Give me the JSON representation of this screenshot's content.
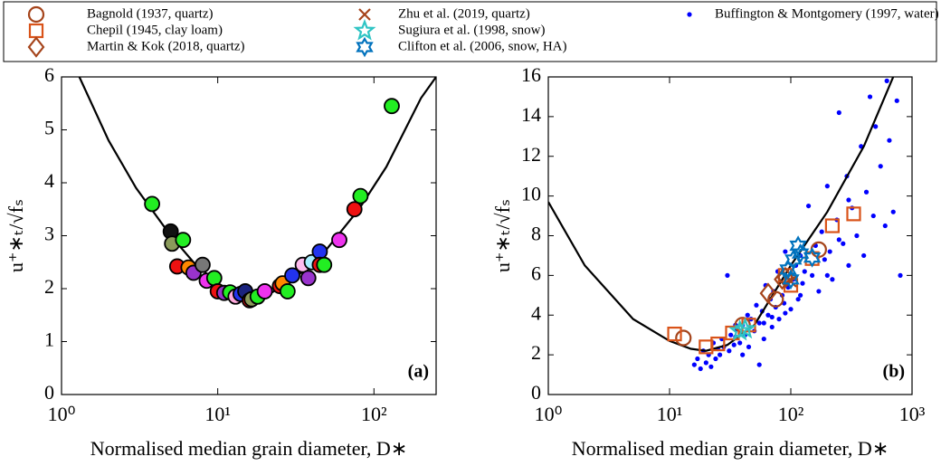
{
  "chart_data": [
    {
      "type": "scatter",
      "xscale": "log",
      "panel_label": "(a)",
      "xlabel": "Normalised median grain diameter, D∗",
      "ylabel": "u⁺∗ₜ/√fₛ",
      "xlim": [
        1,
        250
      ],
      "ylim": [
        0,
        6
      ],
      "xticks": [
        {
          "value": 1,
          "label": "10⁰"
        },
        {
          "value": 10,
          "label": "10¹"
        },
        {
          "value": 100,
          "label": "10²"
        }
      ],
      "yticks": [
        0,
        1,
        2,
        3,
        4,
        5,
        6
      ],
      "line": {
        "color": "#000000",
        "x": [
          1.3,
          2,
          3,
          5,
          7,
          10,
          15,
          20,
          30,
          50,
          80,
          120,
          200,
          250
        ],
        "y": [
          6,
          4.8,
          3.9,
          3.0,
          2.5,
          2.1,
          1.8,
          1.85,
          2.15,
          2.75,
          3.5,
          4.3,
          5.6,
          6.0
        ]
      },
      "series": [
        {
          "marker": "circle",
          "x": [
            3.8,
            5,
            5.1,
            6,
            5.5,
            6.5,
            7,
            8,
            8.5,
            9.5,
            10,
            11,
            12,
            13,
            14,
            15,
            16,
            16.5,
            18,
            20,
            25,
            26,
            28,
            30,
            35,
            38,
            40,
            45,
            45,
            48,
            60,
            75,
            82,
            130
          ],
          "y": [
            3.6,
            3.08,
            2.85,
            2.92,
            2.42,
            2.4,
            2.3,
            2.45,
            2.15,
            2.2,
            1.95,
            1.92,
            1.93,
            1.85,
            1.9,
            1.95,
            1.78,
            1.8,
            1.85,
            1.95,
            2.05,
            2.1,
            1.95,
            2.25,
            2.45,
            2.2,
            2.5,
            2.7,
            2.45,
            2.45,
            2.92,
            3.5,
            3.75,
            5.45
          ],
          "colors": [
            "#22ee22",
            "#111111",
            "#8a9a5b",
            "#22ee22",
            "#ee1111",
            "#ff8800",
            "#9933cc",
            "#777777",
            "#ee33ee",
            "#22ee22",
            "#ee1111",
            "#9933cc",
            "#22ee22",
            "#ffaadd",
            "#2233ee",
            "#1a237e",
            "#ee1111",
            "#8a9a5b",
            "#22ee22",
            "#ee33ee",
            "#ee1111",
            "#ff8800",
            "#22ee22",
            "#2233ee",
            "#ffbbee",
            "#9933cc",
            "#aaeeff",
            "#2233ee",
            "#ee1111",
            "#22ee22",
            "#ee33ee",
            "#ee1111",
            "#22ee22",
            "#22ee22"
          ]
        }
      ]
    },
    {
      "type": "scatter",
      "xscale": "log",
      "panel_label": "(b)",
      "xlabel": "Normalised median grain diameter, D∗",
      "ylabel": "u⁺∗ₜ/√fₛ",
      "xlim": [
        1,
        1000
      ],
      "ylim": [
        0,
        16
      ],
      "xticks": [
        {
          "value": 1,
          "label": "10⁰"
        },
        {
          "value": 10,
          "label": "10¹"
        },
        {
          "value": 100,
          "label": "10²"
        },
        {
          "value": 1000,
          "label": "10³"
        }
      ],
      "yticks": [
        0,
        2,
        4,
        6,
        8,
        10,
        12,
        14,
        16
      ],
      "line": {
        "color": "#000000",
        "x": [
          1,
          2,
          5,
          10,
          15,
          20,
          30,
          50,
          100,
          200,
          400,
          700
        ],
        "y": [
          9.7,
          6.5,
          3.8,
          2.7,
          2.3,
          2.2,
          2.5,
          3.5,
          6.5,
          9.2,
          12.5,
          16
        ]
      },
      "series": [
        {
          "name": "Bagnold (1937, quartz)",
          "marker": "circle",
          "color": "#a5441b",
          "x": [
            13,
            40,
            75,
            170
          ],
          "y": [
            2.85,
            3.5,
            4.8,
            7.3
          ]
        },
        {
          "name": "Chepil (1945, clay loam)",
          "marker": "square",
          "color": "#d95319",
          "x": [
            11,
            20,
            25,
            33,
            45,
            100,
            90,
            150,
            220,
            330
          ],
          "y": [
            3.05,
            2.4,
            2.55,
            3.1,
            3.5,
            5.5,
            6.0,
            6.85,
            8.5,
            9.1
          ]
        },
        {
          "name": "Martin & Kok (2018, quartz)",
          "marker": "diamond",
          "color": "#a5441b",
          "x": [
            65,
            85,
            90
          ],
          "y": [
            5.1,
            5.8,
            5.9
          ]
        },
        {
          "name": "Zhu et al. (2019, quartz)",
          "marker": "x",
          "color": "#a5441b",
          "x": [
            100
          ],
          "y": [
            5.7
          ]
        },
        {
          "name": "Sugiura et al. (1998, snow)",
          "marker": "star",
          "color": "#2ec4c4",
          "x": [
            38,
            42
          ],
          "y": [
            3.2,
            3.3
          ]
        },
        {
          "name": "Clifton et al. (2006, snow, HA)",
          "marker": "hexagram",
          "color": "#0072bd",
          "x": [
            95,
            105,
            115,
            120,
            150,
            100
          ],
          "y": [
            6.3,
            6.8,
            7.5,
            7.1,
            6.9,
            5.8
          ]
        },
        {
          "name": "Buffington & Montgomery (1997, water)",
          "marker": "dot",
          "color": "#0000ff",
          "x": [
            16,
            17,
            18,
            19,
            20,
            21,
            22,
            23,
            24,
            25,
            26,
            27,
            28,
            30,
            31,
            32,
            34,
            35,
            36,
            38,
            40,
            42,
            44,
            45,
            47,
            50,
            52,
            55,
            58,
            60,
            62,
            65,
            68,
            70,
            72,
            75,
            78,
            80,
            85,
            88,
            90,
            95,
            100,
            105,
            110,
            115,
            120,
            125,
            130,
            140,
            150,
            160,
            170,
            180,
            190,
            200,
            210,
            220,
            240,
            250,
            270,
            290,
            300,
            320,
            350,
            380,
            400,
            420,
            450,
            480,
            500,
            550,
            600,
            620,
            650,
            700,
            750,
            800,
            40,
            60,
            70,
            90,
            120,
            200,
            250,
            300,
            55,
            35
          ],
          "y": [
            1.5,
            1.8,
            1.3,
            2.2,
            1.6,
            2.0,
            1.4,
            2.6,
            1.8,
            2.3,
            2.0,
            2.8,
            2.4,
            6.0,
            2.2,
            3.0,
            2.5,
            2.9,
            3.3,
            2.6,
            3.5,
            3.0,
            4.0,
            2.4,
            3.8,
            3.2,
            4.5,
            3.6,
            4.2,
            2.8,
            5.5,
            4.0,
            4.8,
            3.4,
            5.2,
            4.4,
            6.2,
            3.8,
            5.0,
            4.6,
            7.2,
            5.4,
            4.3,
            5.8,
            6.5,
            4.8,
            7.0,
            5.6,
            6.2,
            9.5,
            6.0,
            7.5,
            5.2,
            8.2,
            6.8,
            10.5,
            7.2,
            5.8,
            8.8,
            14.2,
            7.6,
            11.0,
            6.5,
            9.4,
            8.0,
            12.5,
            7.0,
            10.2,
            15.0,
            9.0,
            13.5,
            11.5,
            8.5,
            15.8,
            12.8,
            9.2,
            14.8,
            6.0,
            2.0,
            3.6,
            3.9,
            4.1,
            5.0,
            6.0,
            7.8,
            9.8,
            1.5,
            3.5
          ]
        }
      ]
    }
  ]
}
